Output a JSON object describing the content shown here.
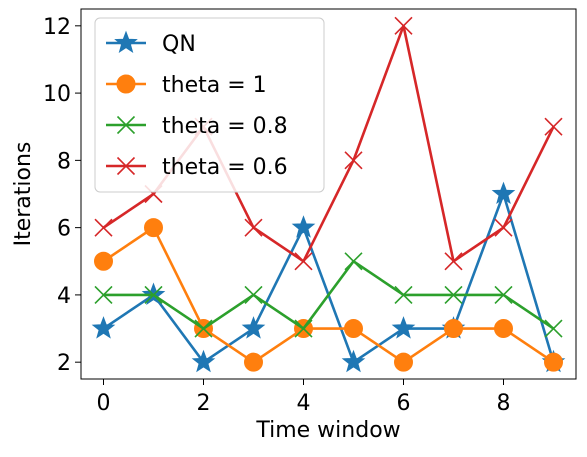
{
  "chart_data": {
    "type": "line",
    "title": "",
    "xlabel": "Time window",
    "ylabel": "Iterations",
    "xlim": [
      -0.45,
      9.45
    ],
    "ylim": [
      1.5,
      12.5
    ],
    "x_ticks": [
      0,
      2,
      4,
      6,
      8
    ],
    "x_tick_labels": [
      "0",
      "2",
      "4",
      "6",
      "8"
    ],
    "y_ticks": [
      2,
      4,
      6,
      8,
      10,
      12
    ],
    "y_tick_labels": [
      "2",
      "4",
      "6",
      "8",
      "10",
      "12"
    ],
    "grid": false,
    "legend_position": "top-left",
    "x": [
      0,
      1,
      2,
      3,
      4,
      5,
      6,
      7,
      8,
      9
    ],
    "series": [
      {
        "name": "QN",
        "values": [
          3,
          4,
          2,
          3,
          6,
          2,
          3,
          3,
          7,
          2
        ],
        "color": "#1f77b4",
        "marker": "star"
      },
      {
        "name": "theta = 1",
        "values": [
          5,
          6,
          3,
          2,
          3,
          3,
          2,
          3,
          3,
          2
        ],
        "color": "#ff7f0e",
        "marker": "circle"
      },
      {
        "name": "theta = 0.8",
        "values": [
          4,
          4,
          3,
          4,
          3,
          5,
          4,
          4,
          4,
          3
        ],
        "color": "#2ca02c",
        "marker": "x"
      },
      {
        "name": "theta = 0.6",
        "values": [
          6,
          7,
          9,
          6,
          5,
          8,
          12,
          5,
          6,
          9
        ],
        "color": "#d62728",
        "marker": "x"
      }
    ]
  }
}
